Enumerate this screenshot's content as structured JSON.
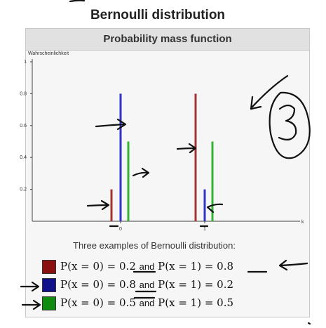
{
  "title": "Bernoulli distribution",
  "panel_header": "Probability mass function",
  "caption": "Three examples of Bernoulli distribution:",
  "legend": [
    {
      "color": "#8b1010",
      "p0": "P(x = 0) = 0.2",
      "and": "and",
      "p1": "P(x = 1) = 0.8"
    },
    {
      "color": "#10108b",
      "p0": "P(x = 0) = 0.8",
      "and": "and",
      "p1": "P(x = 1) = 0.2"
    },
    {
      "color": "#108b10",
      "p0": "P(x = 0) = 0.5",
      "and": "and",
      "p1": "P(x = 1) = 0.5"
    }
  ],
  "chart_data": {
    "type": "bar",
    "ylabel": "Wahrscheinlichkeit",
    "xlabel": "k",
    "categories": [
      "0",
      "1"
    ],
    "x_tick_labels": [
      "0",
      "1"
    ],
    "y_ticks": [
      "0.2",
      "0.4",
      "0.6",
      "0.8",
      "1"
    ],
    "ylim": [
      0,
      1
    ],
    "series": [
      {
        "color": "#a83232",
        "values": [
          0.2,
          0.8
        ]
      },
      {
        "color": "#3232c8",
        "values": [
          0.8,
          0.2
        ]
      },
      {
        "color": "#32b432",
        "values": [
          0.5,
          0.5
        ]
      }
    ]
  }
}
